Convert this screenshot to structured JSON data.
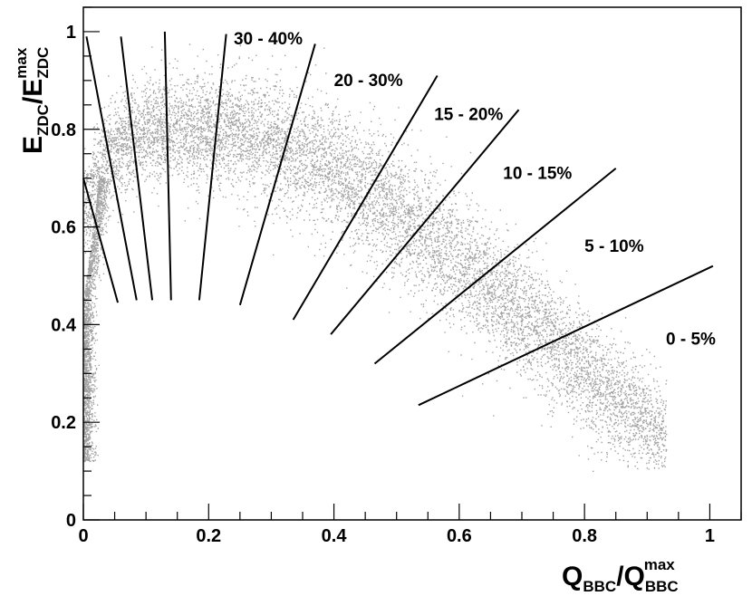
{
  "chart_data": {
    "type": "scatter",
    "xlabel": {
      "main": "Q",
      "sub": "BBC",
      "slash": "/Q",
      "sub2": "BBC",
      "sup2": "max"
    },
    "ylabel": {
      "main": "E",
      "sub": "ZDC",
      "slash": "/E",
      "sub2": "ZDC",
      "sup2": "max"
    },
    "xlim": [
      0,
      1.05
    ],
    "ylim": [
      0,
      1.05
    ],
    "x_ticks": [
      {
        "value": 0,
        "label": "0"
      },
      {
        "value": 0.2,
        "label": "0.2"
      },
      {
        "value": 0.4,
        "label": "0.4"
      },
      {
        "value": 0.6,
        "label": "0.6"
      },
      {
        "value": 0.8,
        "label": "0.8"
      },
      {
        "value": 1.0,
        "label": "1"
      }
    ],
    "y_ticks": [
      {
        "value": 0,
        "label": "0"
      },
      {
        "value": 0.2,
        "label": "0.2"
      },
      {
        "value": 0.4,
        "label": "0.4"
      },
      {
        "value": 0.6,
        "label": "0.6"
      },
      {
        "value": 0.8,
        "label": "0.8"
      },
      {
        "value": 1.0,
        "label": "1"
      }
    ],
    "grid": false,
    "point_color": "#555555",
    "density_band": {
      "centerline": [
        [
          0.0,
          0.63
        ],
        [
          0.03,
          0.74
        ],
        [
          0.1,
          0.8
        ],
        [
          0.2,
          0.8
        ],
        [
          0.3,
          0.78
        ],
        [
          0.4,
          0.72
        ],
        [
          0.5,
          0.63
        ],
        [
          0.6,
          0.53
        ],
        [
          0.7,
          0.42
        ],
        [
          0.8,
          0.3
        ],
        [
          0.9,
          0.2
        ],
        [
          0.93,
          0.17
        ]
      ],
      "vertical_strip": {
        "x": 0.01,
        "y_range": [
          0.12,
          0.7
        ]
      }
    },
    "centrality_cuts": [
      {
        "label": "",
        "x1": 0.0,
        "y1": 0.7,
        "x2": 0.055,
        "y2": 0.445
      },
      {
        "label": "",
        "x1": 0.005,
        "y1": 0.99,
        "x2": 0.085,
        "y2": 0.45
      },
      {
        "label": "",
        "x1": 0.06,
        "y1": 0.99,
        "x2": 0.11,
        "y2": 0.45
      },
      {
        "label": "",
        "x1": 0.13,
        "y1": 1.0,
        "x2": 0.14,
        "y2": 0.45
      },
      {
        "label": "30 - 40%",
        "x1": 0.228,
        "y1": 0.995,
        "x2": 0.185,
        "y2": 0.45,
        "label_x": 0.24,
        "label_y": 0.985
      },
      {
        "label": "20 - 30%",
        "x1": 0.37,
        "y1": 0.975,
        "x2": 0.25,
        "y2": 0.44,
        "label_x": 0.4,
        "label_y": 0.9
      },
      {
        "label": "15 - 20%",
        "x1": 0.565,
        "y1": 0.91,
        "x2": 0.335,
        "y2": 0.41,
        "label_x": 0.56,
        "label_y": 0.83
      },
      {
        "label": "10 - 15%",
        "x1": 0.695,
        "y1": 0.84,
        "x2": 0.395,
        "y2": 0.38,
        "label_x": 0.67,
        "label_y": 0.71
      },
      {
        "label": "5 - 10%",
        "x1": 0.85,
        "y1": 0.72,
        "x2": 0.465,
        "y2": 0.32,
        "label_x": 0.8,
        "label_y": 0.56
      },
      {
        "label": "0 - 5%",
        "x1": 1.005,
        "y1": 0.52,
        "x2": 0.535,
        "y2": 0.235,
        "label_x": 0.93,
        "label_y": 0.37
      }
    ]
  }
}
